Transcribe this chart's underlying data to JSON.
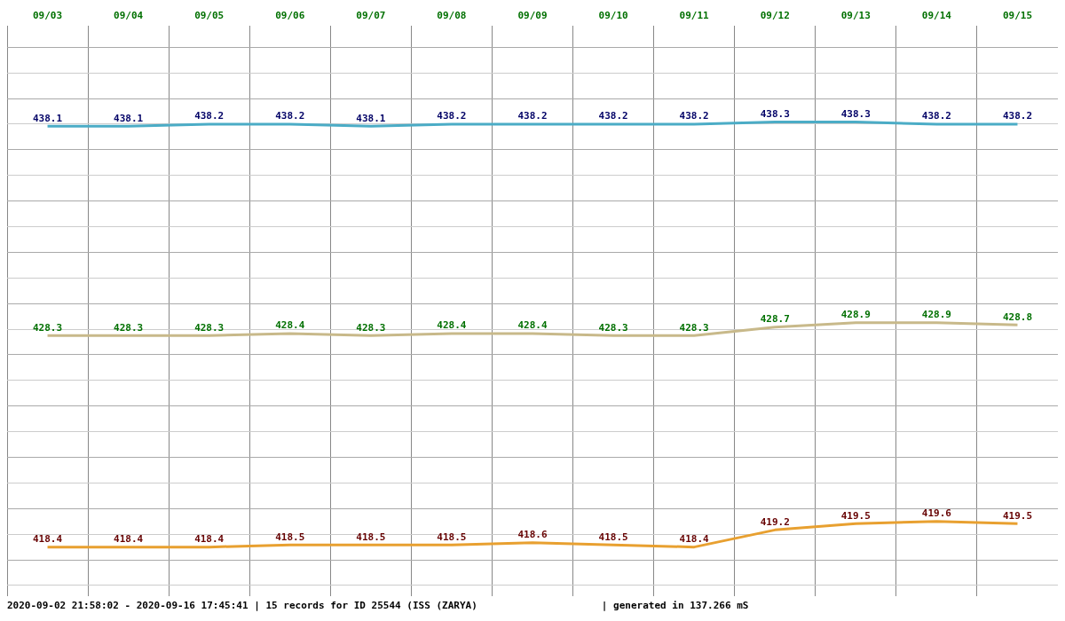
{
  "chart_data": {
    "type": "line",
    "categories": [
      "09/03",
      "09/04",
      "09/05",
      "09/06",
      "09/07",
      "09/08",
      "09/09",
      "09/10",
      "09/11",
      "09/12",
      "09/13",
      "09/14",
      "09/15"
    ],
    "series": [
      {
        "color": "#4bacc6",
        "values": [
          438.1,
          438.1,
          438.2,
          438.2,
          438.1,
          438.2,
          438.2,
          438.2,
          438.2,
          438.3,
          438.3,
          438.2,
          438.2
        ]
      },
      {
        "color": "#c8b98a",
        "values": [
          428.3,
          428.3,
          428.3,
          428.4,
          428.3,
          428.4,
          428.4,
          428.3,
          428.3,
          428.7,
          428.9,
          428.9,
          428.8
        ]
      },
      {
        "color": "#e8a030",
        "values": [
          418.4,
          418.4,
          418.4,
          418.5,
          418.5,
          418.5,
          418.6,
          418.5,
          418.4,
          419.2,
          419.5,
          419.6,
          419.5
        ]
      }
    ],
    "ylim": [
      416.1,
      442.8
    ],
    "yticks": [
      {
        "value": 416.6,
        "label": null
      },
      {
        "value": 417.8,
        "label": null
      },
      {
        "value": 419.0,
        "label": null
      },
      {
        "value": 420.2,
        "label": null
      },
      {
        "value": 421.4,
        "label": null
      },
      {
        "value": 422.6,
        "label": null
      },
      {
        "value": 423.8,
        "label": null
      },
      {
        "value": 425.0,
        "label": null
      },
      {
        "value": 426.2,
        "label": null
      },
      {
        "value": 427.4,
        "label": null
      },
      {
        "value": 428.6,
        "label": null
      },
      {
        "value": 429.8,
        "label": null
      },
      {
        "value": 431.0,
        "label": null
      },
      {
        "value": 432.2,
        "label": null
      },
      {
        "value": 433.4,
        "label": null
      },
      {
        "value": 434.6,
        "label": null
      },
      {
        "value": 435.8,
        "label": null
      },
      {
        "value": 437.0,
        "label": null
      },
      {
        "value": 438.2,
        "label": null
      },
      {
        "value": 439.4,
        "label": null
      },
      {
        "value": 440.6,
        "label": null
      },
      {
        "value": 441.8,
        "label": null
      }
    ],
    "tick_labels": "x",
    "grid": true,
    "legend": false,
    "marker": "none",
    "line_style": "solid",
    "data_labels": true,
    "annotations": [
      "2020-09-02 21:58:02 - 2020-09-16 17:45:41 | 15 records for ID 25544 (ISS (ZARYA)",
      "| generated in 137.266 mS"
    ]
  }
}
